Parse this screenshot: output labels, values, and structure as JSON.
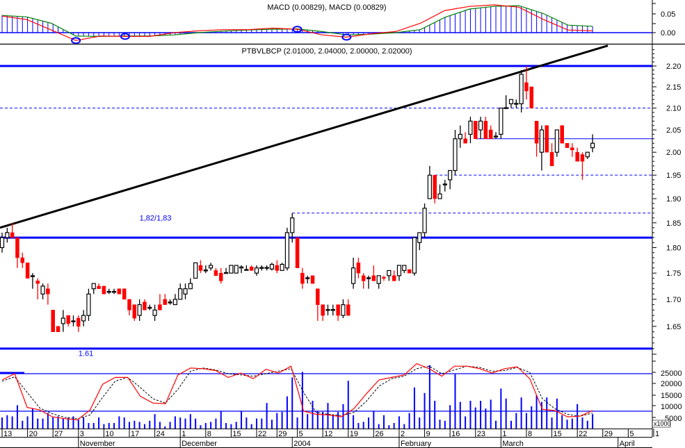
{
  "chart_data": {
    "type": "candlestick",
    "symbol_title": "PTBVLBCP (2.01000, 2.04000, 2.00000, 2.02000)",
    "y_scale": "log",
    "ylim": [
      1.59,
      2.25
    ],
    "yticks": [
      "2.20",
      "2.15",
      "2.10",
      "2.05",
      "2.00",
      "1.95",
      "1.90",
      "1.85",
      "1.80",
      "1.75",
      "1.70",
      "1.65"
    ],
    "colors": {
      "up_body": "#ffffff",
      "up_outline": "#000000",
      "down": "#ff0000",
      "level": "#0000ff",
      "trend": "#000000",
      "macd": "#ff0000",
      "signal": "#008000",
      "histogram": "#0000ff",
      "stoch_k": "#ff0000",
      "stoch_d": "#000000",
      "volume": "#0000ff"
    },
    "ohlc": [
      [
        "2003-10-13",
        1.8,
        1.83,
        1.79,
        1.82
      ],
      [
        "2003-10-14",
        1.82,
        1.84,
        1.81,
        1.83
      ],
      [
        "2003-10-15",
        1.83,
        1.85,
        1.82,
        1.82
      ],
      [
        "2003-10-16",
        1.82,
        1.82,
        1.76,
        1.78
      ],
      [
        "2003-10-17",
        1.78,
        1.79,
        1.76,
        1.77
      ],
      [
        "2003-10-20",
        1.77,
        1.77,
        1.74,
        1.74
      ],
      [
        "2003-10-21",
        1.745,
        1.75,
        1.72,
        1.745
      ],
      [
        "2003-10-22",
        1.735,
        1.74,
        1.7,
        1.73
      ],
      [
        "2003-10-23",
        1.71,
        1.73,
        1.7,
        1.725
      ],
      [
        "2003-10-24",
        1.72,
        1.73,
        1.69,
        1.71
      ],
      [
        "2003-10-27",
        1.68,
        1.68,
        1.64,
        1.64
      ],
      [
        "2003-10-28",
        1.65,
        1.65,
        1.64,
        1.64
      ],
      [
        "2003-10-29",
        1.655,
        1.68,
        1.64,
        1.665
      ],
      [
        "2003-10-30",
        1.67,
        1.67,
        1.65,
        1.655
      ],
      [
        "2003-10-31",
        1.66,
        1.67,
        1.65,
        1.66
      ],
      [
        "2003-11-03",
        1.665,
        1.67,
        1.64,
        1.65
      ],
      [
        "2003-11-04",
        1.66,
        1.68,
        1.65,
        1.67
      ],
      [
        "2003-11-05",
        1.67,
        1.72,
        1.66,
        1.71
      ],
      [
        "2003-11-06",
        1.72,
        1.73,
        1.71,
        1.73
      ],
      [
        "2003-11-07",
        1.725,
        1.73,
        1.72,
        1.72
      ],
      [
        "2003-11-10",
        1.725,
        1.725,
        1.71,
        1.71
      ],
      [
        "2003-11-11",
        1.715,
        1.72,
        1.71,
        1.715
      ],
      [
        "2003-11-12",
        1.715,
        1.72,
        1.71,
        1.715
      ],
      [
        "2003-11-13",
        1.72,
        1.72,
        1.71,
        1.71
      ],
      [
        "2003-11-14",
        1.72,
        1.72,
        1.7,
        1.7
      ],
      [
        "2003-11-17",
        1.7,
        1.7,
        1.67,
        1.68
      ],
      [
        "2003-11-18",
        1.69,
        1.69,
        1.66,
        1.665
      ],
      [
        "2003-11-19",
        1.67,
        1.7,
        1.66,
        1.69
      ],
      [
        "2003-11-20",
        1.695,
        1.7,
        1.68,
        1.68
      ],
      [
        "2003-11-21",
        1.685,
        1.69,
        1.68,
        1.685
      ],
      [
        "2003-11-24",
        1.67,
        1.69,
        1.66,
        1.68
      ],
      [
        "2003-11-25",
        1.69,
        1.71,
        1.68,
        1.68
      ],
      [
        "2003-11-26",
        1.7,
        1.71,
        1.69,
        1.69
      ],
      [
        "2003-11-27",
        1.695,
        1.7,
        1.69,
        1.695
      ],
      [
        "2003-11-28",
        1.69,
        1.71,
        1.69,
        1.7
      ],
      [
        "2003-12-01",
        1.7,
        1.73,
        1.7,
        1.72
      ],
      [
        "2003-12-02",
        1.71,
        1.73,
        1.7,
        1.72
      ],
      [
        "2003-12-03",
        1.72,
        1.74,
        1.72,
        1.73
      ],
      [
        "2003-12-04",
        1.74,
        1.77,
        1.74,
        1.77
      ],
      [
        "2003-12-05",
        1.765,
        1.775,
        1.75,
        1.755
      ],
      [
        "2003-12-08",
        1.755,
        1.765,
        1.75,
        1.756
      ],
      [
        "2003-12-09",
        1.76,
        1.77,
        1.755,
        1.765
      ],
      [
        "2003-12-10",
        1.755,
        1.76,
        1.745,
        1.745
      ],
      [
        "2003-12-11",
        1.75,
        1.76,
        1.73,
        1.735
      ],
      [
        "2003-12-12",
        1.75,
        1.76,
        1.75,
        1.751
      ],
      [
        "2003-12-15",
        1.75,
        1.76,
        1.75,
        1.765
      ],
      [
        "2003-12-16",
        1.75,
        1.765,
        1.75,
        1.765
      ],
      [
        "2003-12-17",
        1.76,
        1.765,
        1.75,
        1.762
      ],
      [
        "2003-12-18",
        1.756,
        1.765,
        1.755,
        1.757
      ],
      [
        "2003-12-19",
        1.762,
        1.765,
        1.755,
        1.755
      ],
      [
        "2003-12-22",
        1.75,
        1.765,
        1.745,
        1.76
      ],
      [
        "2003-12-23",
        1.76,
        1.765,
        1.755,
        1.761
      ],
      [
        "2003-12-24",
        1.76,
        1.765,
        1.755,
        1.761
      ],
      [
        "2003-12-26",
        1.758,
        1.77,
        1.755,
        1.767
      ],
      [
        "2003-12-29",
        1.765,
        1.775,
        1.75,
        1.755
      ],
      [
        "2003-12-30",
        1.755,
        1.77,
        1.755,
        1.767
      ],
      [
        "2003-12-31",
        1.76,
        1.84,
        1.755,
        1.83
      ],
      [
        "2004-01-02",
        1.83,
        1.87,
        1.81,
        1.86
      ],
      [
        "2004-01-05",
        1.82,
        1.82,
        1.76,
        1.76
      ],
      [
        "2004-01-06",
        1.75,
        1.76,
        1.72,
        1.73
      ],
      [
        "2004-01-07",
        1.74,
        1.745,
        1.73,
        1.741
      ],
      [
        "2004-01-08",
        1.745,
        1.745,
        1.73,
        1.73
      ],
      [
        "2004-01-09",
        1.72,
        1.72,
        1.66,
        1.69
      ],
      [
        "2004-01-12",
        1.69,
        1.69,
        1.66,
        1.67
      ],
      [
        "2004-01-13",
        1.68,
        1.69,
        1.67,
        1.681
      ],
      [
        "2004-01-14",
        1.68,
        1.69,
        1.67,
        1.681
      ],
      [
        "2004-01-15",
        1.69,
        1.69,
        1.66,
        1.67
      ],
      [
        "2004-01-16",
        1.67,
        1.7,
        1.665,
        1.69
      ],
      [
        "2004-01-19",
        1.69,
        1.7,
        1.67,
        1.67
      ],
      [
        "2004-01-20",
        1.73,
        1.78,
        1.72,
        1.76
      ],
      [
        "2004-01-21",
        1.77,
        1.78,
        1.74,
        1.75
      ],
      [
        "2004-01-22",
        1.745,
        1.75,
        1.72,
        1.735
      ],
      [
        "2004-01-23",
        1.74,
        1.745,
        1.72,
        1.741
      ],
      [
        "2004-01-26",
        1.745,
        1.765,
        1.74,
        1.735
      ],
      [
        "2004-01-27",
        1.73,
        1.745,
        1.72,
        1.745
      ],
      [
        "2004-01-28",
        1.742,
        1.745,
        1.735,
        1.74
      ],
      [
        "2004-01-29",
        1.745,
        1.755,
        1.735,
        1.755
      ],
      [
        "2004-01-30",
        1.745,
        1.755,
        1.735,
        1.735
      ],
      [
        "2004-02-02",
        1.745,
        1.765,
        1.735,
        1.765
      ],
      [
        "2004-02-03",
        1.755,
        1.765,
        1.75,
        1.765
      ],
      [
        "2004-02-04",
        1.757,
        1.757,
        1.75,
        1.75
      ],
      [
        "2004-02-05",
        1.75,
        1.82,
        1.745,
        1.82
      ],
      [
        "2004-02-06",
        1.81,
        1.83,
        1.795,
        1.83
      ],
      [
        "2004-02-09",
        1.83,
        1.89,
        1.82,
        1.88
      ],
      [
        "2004-02-10",
        1.9,
        1.97,
        1.9,
        1.95
      ],
      [
        "2004-02-11",
        1.95,
        1.95,
        1.89,
        1.9
      ],
      [
        "2004-02-12",
        1.9,
        1.93,
        1.9,
        1.91
      ],
      [
        "2004-02-13",
        1.93,
        1.94,
        1.915,
        1.931
      ],
      [
        "2004-02-16",
        1.94,
        1.96,
        1.92,
        1.96
      ],
      [
        "2004-02-17",
        1.96,
        2.05,
        1.95,
        2.03
      ],
      [
        "2004-02-18",
        2.03,
        2.06,
        2.01,
        2.04
      ],
      [
        "2004-02-19",
        2.03,
        2.045,
        2.02,
        2.02
      ],
      [
        "2004-02-20",
        2.04,
        2.08,
        2.02,
        2.07
      ],
      [
        "2004-02-23",
        2.07,
        2.07,
        2.03,
        2.03
      ],
      [
        "2004-02-24",
        2.05,
        2.08,
        2.03,
        2.07
      ],
      [
        "2004-02-25",
        2.07,
        2.08,
        2.03,
        2.03
      ],
      [
        "2004-02-26",
        2.05,
        2.06,
        2.03,
        2.03
      ],
      [
        "2004-02-27",
        2.035,
        2.045,
        2.03,
        2.036
      ],
      [
        "2004-03-01",
        2.04,
        2.1,
        2.03,
        2.1
      ],
      [
        "2004-03-02",
        2.1,
        2.13,
        2.1,
        2.101
      ],
      [
        "2004-03-03",
        2.11,
        2.12,
        2.1,
        2.12
      ],
      [
        "2004-03-04",
        2.11,
        2.12,
        2.1,
        2.111
      ],
      [
        "2004-03-05",
        2.11,
        2.19,
        2.09,
        2.18
      ],
      [
        "2004-03-08",
        2.16,
        2.2,
        2.12,
        2.14
      ],
      [
        "2004-03-09",
        2.15,
        2.15,
        2.1,
        2.1
      ],
      [
        "2004-03-10",
        2.07,
        2.07,
        1.99,
        2.02
      ],
      [
        "2004-03-11",
        2.0,
        2.06,
        1.96,
        2.05
      ],
      [
        "2004-03-12",
        2.06,
        2.06,
        2.0,
        2.0
      ],
      [
        "2004-03-15",
        2.0,
        2.02,
        1.97,
        1.97
      ],
      [
        "2004-03-16",
        2.0,
        2.05,
        1.99,
        2.05
      ],
      [
        "2004-03-17",
        2.06,
        2.06,
        2.02,
        2.02
      ],
      [
        "2004-03-18",
        2.02,
        2.02,
        2.01,
        2.01
      ],
      [
        "2004-03-19",
        2.01,
        2.02,
        1.99,
        2.005
      ],
      [
        "2004-03-22",
        2.0,
        2.01,
        1.98,
        1.98
      ],
      [
        "2004-03-23",
        1.995,
        2.0,
        1.94,
        1.98
      ],
      [
        "2004-03-24",
        1.99,
        2.0,
        1.985,
        2.0
      ],
      [
        "2004-03-25",
        2.01,
        2.04,
        2.0,
        2.02
      ]
    ],
    "levels": [
      {
        "price": 2.2,
        "style": "thick",
        "color": "#0000ff"
      },
      {
        "price": 1.82,
        "style": "thick",
        "color": "#0000ff"
      },
      {
        "price": 1.61,
        "style": "thick",
        "color": "#0000ff"
      },
      {
        "price": 2.1,
        "style": "dashed",
        "color": "#0000ff"
      },
      {
        "price": 1.95,
        "style": "dashed",
        "color": "#0000ff",
        "from": "2004-02-11"
      },
      {
        "price": 1.87,
        "style": "dashed",
        "color": "#0000ff",
        "from": "2004-01-02"
      },
      {
        "price": 2.03,
        "style": "thin",
        "color": "#0000ff",
        "from": "2004-02-23"
      }
    ],
    "trendline": {
      "start": {
        "date": "2003-10-13",
        "price": 1.84
      },
      "end": {
        "date": "2004-03-30",
        "price": 2.25
      }
    },
    "annotations": [
      {
        "text": "1,82/1,83",
        "date": "2003-11-19",
        "price": 1.855
      },
      {
        "text": "1.61",
        "date": "2003-11-03",
        "price": 1.597
      }
    ],
    "macd": {
      "title": "MACD (0.00829), MACD (0.00829)",
      "yticks": [
        "0.05",
        "0.00"
      ],
      "macd": [
        0.044,
        0.035,
        0.007,
        -0.021,
        -0.009,
        -0.01,
        -0.01,
        0.0,
        0.005,
        0.008,
        0.008,
        0.012,
        0.009,
        -0.006,
        -0.012,
        -0.003,
        0.003,
        0.025,
        0.059,
        0.07,
        0.074,
        0.068,
        0.035,
        0.007,
        0.005
      ],
      "signal": [
        0.046,
        0.042,
        0.025,
        -0.009,
        -0.01,
        -0.009,
        -0.009,
        -0.006,
        0.0,
        0.004,
        0.007,
        0.009,
        0.01,
        0.003,
        -0.006,
        -0.004,
        0.0,
        0.008,
        0.041,
        0.063,
        0.07,
        0.072,
        0.051,
        0.02,
        0.017
      ],
      "crossovers": [
        3,
        5,
        12,
        14
      ]
    },
    "lower_panel": {
      "yticks": [
        "25000",
        "20000",
        "15000",
        "10000",
        "5000"
      ],
      "unit_label": "x1000",
      "stoch_levels": [
        80,
        20
      ],
      "stoch_k": [
        70,
        80,
        26,
        22,
        11,
        8,
        6,
        22,
        63,
        74,
        74,
        44,
        33,
        32,
        78,
        89,
        88,
        85,
        74,
        81,
        72,
        87,
        81,
        92,
        20,
        15,
        14,
        11,
        24,
        48,
        70,
        74,
        78,
        96,
        88,
        76,
        92,
        92,
        88,
        81,
        88,
        91,
        72,
        23,
        21,
        11,
        12,
        21
      ],
      "stoch_d": [
        68,
        75,
        50,
        25,
        16,
        10,
        8,
        14,
        42,
        68,
        74,
        58,
        40,
        33,
        55,
        84,
        89,
        86,
        80,
        78,
        76,
        80,
        84,
        88,
        50,
        18,
        15,
        13,
        18,
        36,
        60,
        72,
        76,
        88,
        92,
        80,
        86,
        92,
        90,
        84,
        85,
        90,
        82,
        40,
        24,
        15,
        12,
        17
      ],
      "volume": [
        5000,
        6000,
        5500,
        10500,
        3500,
        5500,
        9000,
        4500,
        4500,
        7000,
        5000,
        5500,
        4500,
        5000,
        5500,
        4000,
        5000,
        2500,
        2500,
        5000,
        2000,
        2500,
        2500,
        5500,
        5000,
        3000,
        3500,
        3000,
        2000,
        3500,
        6500,
        3000,
        1000,
        3000,
        5500,
        5000,
        4500,
        6500,
        4500,
        1500,
        2500,
        3000,
        4500,
        8000,
        2500,
        2000,
        3000,
        8000,
        5000,
        2000,
        4500,
        4500,
        11500,
        4000,
        7000,
        7500,
        14500,
        23000,
        5000,
        25500,
        6500,
        12500,
        8000,
        7500,
        11500,
        6000,
        7500,
        11000,
        21500,
        6000,
        2500,
        3000,
        5000,
        8000,
        2000,
        6000,
        1500,
        2500,
        5500,
        2000,
        7000,
        18500,
        5000,
        16000,
        28500,
        12500,
        4000,
        3500,
        10500,
        24500,
        12000,
        5500,
        12500,
        9500,
        12500,
        9000,
        13000,
        3500,
        18000,
        13500,
        3500,
        7000,
        14000,
        7000,
        10000,
        15000,
        12000,
        14000,
        5000,
        13500,
        6000,
        4000,
        4500,
        11000,
        5000,
        3500,
        6500
      ]
    },
    "x_axis": {
      "day_ticks": [
        {
          "label": "13",
          "date": "2003-10-13"
        },
        {
          "label": "20",
          "date": "2003-10-20"
        },
        {
          "label": "27",
          "date": "2003-10-27"
        },
        {
          "label": "3",
          "date": "2003-11-03"
        },
        {
          "label": "10",
          "date": "2003-11-10"
        },
        {
          "label": "17",
          "date": "2003-11-17"
        },
        {
          "label": "24",
          "date": "2003-11-24"
        },
        {
          "label": "1",
          "date": "2003-12-01"
        },
        {
          "label": "8",
          "date": "2003-12-08"
        },
        {
          "label": "15",
          "date": "2003-12-15"
        },
        {
          "label": "22",
          "date": "2003-12-22"
        },
        {
          "label": "29",
          "date": "2003-12-29"
        },
        {
          "label": "5",
          "date": "2004-01-05"
        },
        {
          "label": "12",
          "date": "2004-01-12"
        },
        {
          "label": "19",
          "date": "2004-01-19"
        },
        {
          "label": "26",
          "date": "2004-01-26"
        },
        {
          "label": "2",
          "date": "2004-02-02"
        },
        {
          "label": "9",
          "date": "2004-02-09"
        },
        {
          "label": "16",
          "date": "2004-02-16"
        },
        {
          "label": "23",
          "date": "2004-02-23"
        },
        {
          "label": "1",
          "date": "2004-03-01"
        },
        {
          "label": "8",
          "date": "2004-03-08"
        },
        {
          "label": "15",
          "date": "2004-03-15"
        },
        {
          "label": "22",
          "date": "2004-03-22"
        },
        {
          "label": "29",
          "date": "2004-03-29"
        },
        {
          "label": "5",
          "date": "2004-04-05"
        },
        {
          "label": "1",
          "date": "2004-04-12"
        }
      ],
      "month_ticks": [
        {
          "label": "November",
          "date": "2003-11-03"
        },
        {
          "label": "December",
          "date": "2003-12-01"
        },
        {
          "label": "2004",
          "date": "2004-01-02"
        },
        {
          "label": "February",
          "date": "2004-02-02"
        },
        {
          "label": "March",
          "date": "2004-03-01"
        },
        {
          "label": "April",
          "date": "2004-04-01"
        }
      ]
    }
  }
}
